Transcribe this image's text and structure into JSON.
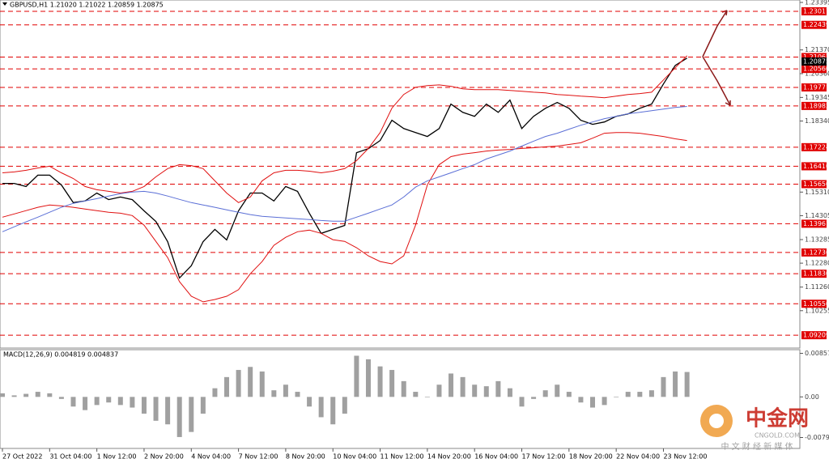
{
  "chart_data": [
    {
      "type": "line",
      "title": "GBPUSD,H1  1.21020 1.21022 1.20859 1.20875",
      "categories": [
        "27 Oct 2022",
        null,
        null,
        null,
        "31 Oct 04:00",
        null,
        null,
        null,
        "1 Nov 12:00",
        null,
        null,
        null,
        "2 Nov 20:00",
        null,
        null,
        null,
        "4 Nov 04:00",
        null,
        null,
        null,
        "7 Nov 12:00",
        null,
        null,
        null,
        "8 Nov 20:00",
        null,
        null,
        null,
        "10 Nov 04:00",
        null,
        null,
        null,
        "11 Nov 12:00",
        null,
        null,
        null,
        "14 Nov 20:00",
        null,
        null,
        null,
        "16 Nov 04:00",
        null,
        null,
        null,
        "17 Nov 12:00",
        null,
        null,
        null,
        "18 Nov 20:00",
        null,
        null,
        null,
        "22 Nov 04:00",
        null,
        null,
        null,
        "23 Nov 12:00",
        null,
        null
      ],
      "series": [
        {
          "color": "#000000",
          "values": [
            1.1568,
            1.1568,
            1.1555,
            1.1603,
            1.1603,
            1.1561,
            1.1486,
            1.1493,
            1.1527,
            1.1499,
            1.151,
            1.1499,
            1.1451,
            1.1406,
            1.132,
            1.1165,
            1.1217,
            1.132,
            1.1372,
            1.1327,
            1.1451,
            1.1527,
            1.1527,
            1.1493,
            1.1555,
            1.1534,
            1.1441,
            1.1355,
            1.1372,
            1.1389,
            1.1699,
            1.1716,
            1.1751,
            1.1837,
            1.1802,
            1.1785,
            1.1768,
            1.1802,
            1.1906,
            1.1871,
            1.1854,
            1.1906,
            1.1871,
            1.1923,
            1.1802,
            1.1854,
            1.1888,
            1.1913,
            1.1888,
            1.1837,
            1.182,
            1.183,
            1.1854,
            1.1864,
            1.1888,
            1.1906,
            1.1992,
            1.2071,
            1.2102
          ]
        },
        {
          "color": "#e01010",
          "values": [
            1.1613,
            1.1617,
            1.1624,
            1.1634,
            1.1641,
            1.1613,
            1.1589,
            1.1555,
            1.1541,
            1.1534,
            1.1527,
            1.1534,
            1.1555,
            1.1596,
            1.1631,
            1.1648,
            1.1644,
            1.1631,
            1.1579,
            1.1527,
            1.1486,
            1.151,
            1.1579,
            1.1613,
            1.1624,
            1.1624,
            1.162,
            1.1613,
            1.162,
            1.1631,
            1.1665,
            1.1717,
            1.1785,
            1.1889,
            1.1947,
            1.1978,
            1.1985,
            1.1988,
            1.1982,
            1.1971,
            1.1968,
            1.1968,
            1.1968,
            1.1964,
            1.1961,
            1.1957,
            1.1954,
            1.1947,
            1.1944,
            1.194,
            1.1937,
            1.1933,
            1.194,
            1.1947,
            1.1951,
            1.1957,
            1.2009,
            1.2061,
            1.2112
          ]
        },
        {
          "color": "#e01010",
          "values": [
            1.1424,
            1.1438,
            1.1452,
            1.1466,
            1.1476,
            1.1472,
            1.1466,
            1.1459,
            1.1452,
            1.1445,
            1.1441,
            1.1431,
            1.139,
            1.1321,
            1.1252,
            1.1149,
            1.1087,
            1.1063,
            1.1073,
            1.1087,
            1.1115,
            1.1183,
            1.1235,
            1.1304,
            1.1338,
            1.1362,
            1.1369,
            1.1355,
            1.1328,
            1.1321,
            1.1294,
            1.1259,
            1.1235,
            1.1225,
            1.1259,
            1.139,
            1.1562,
            1.1648,
            1.1682,
            1.1693,
            1.1699,
            1.1706,
            1.171,
            1.1713,
            1.1717,
            1.172,
            1.1724,
            1.1727,
            1.1734,
            1.1741,
            1.1761,
            1.1782,
            1.1785,
            1.1785,
            1.1782,
            1.1775,
            1.1768,
            1.1758,
            1.1751
          ]
        },
        {
          "color": "#5b6fd6",
          "values": [
            1.1362,
            1.1383,
            1.1404,
            1.1424,
            1.1445,
            1.1466,
            1.1483,
            1.1493,
            1.1503,
            1.1514,
            1.1524,
            1.1531,
            1.1534,
            1.1527,
            1.1514,
            1.15,
            1.1486,
            1.1476,
            1.1466,
            1.1455,
            1.1445,
            1.1435,
            1.1428,
            1.1424,
            1.1421,
            1.1417,
            1.1414,
            1.141,
            1.1407,
            1.1407,
            1.1424,
            1.1441,
            1.1459,
            1.1476,
            1.151,
            1.1552,
            1.1579,
            1.1596,
            1.1613,
            1.1631,
            1.1648,
            1.1672,
            1.1689,
            1.1706,
            1.1727,
            1.1748,
            1.1768,
            1.1782,
            1.1799,
            1.1816,
            1.183,
            1.1844,
            1.1854,
            1.1865,
            1.1871,
            1.1878,
            1.1885,
            1.1892,
            1.1896
          ]
        }
      ],
      "ylim": [
        1.0873,
        1.23395
      ],
      "yticks": [
        1.23395,
        {
          "value": 1.2137,
          "label": "1.21370"
        },
        {
          "value": 1.2036,
          "label": "1.20360"
        },
        1.19345,
        {
          "value": 1.1834,
          "label": "1.18340"
        },
        {
          "value": 1.1531,
          "label": "1.15310"
        },
        1.14305,
        1.13285,
        {
          "value": 1.1228,
          "label": "1.12280"
        },
        {
          "value": 1.1126,
          "label": "1.11260"
        },
        1.10255
      ],
      "levels": [
        1.23017,
        1.22439,
        1.21067,
        {
          "value": 1.2056,
          "label": "1.20560"
        },
        1.19771,
        1.18982,
        1.17224,
        {
          "value": 1.1641,
          "label": "1.16410"
        },
        {
          "value": 1.1565,
          "label": "1.15650"
        },
        1.13961,
        1.12736,
        {
          "value": 1.1183,
          "label": "1.11830"
        },
        {
          "value": 1.1055,
          "label": "1.10550"
        },
        1.09209
      ],
      "level_color": "#e00000",
      "current_price": 1.20875
    },
    {
      "type": "bar",
      "title": "MACD(12,26,9) 0.004819 0.004837",
      "color": "#a0a0a0",
      "values": [
        0.0007,
        0.0003,
        0.0006,
        0.001,
        0.0007,
        -0.0004,
        -0.0019,
        -0.0026,
        -0.0016,
        -0.0011,
        -0.0016,
        -0.0021,
        -0.0033,
        -0.0047,
        -0.0054,
        -0.0079,
        -0.0069,
        -0.0033,
        0.0017,
        0.0039,
        0.0053,
        0.0059,
        0.005,
        0.0013,
        0.0024,
        0.001,
        -0.0019,
        -0.004,
        -0.0054,
        -0.0033,
        0.0081,
        0.0074,
        0.006,
        0.0053,
        0.0031,
        0.001,
        -0.0001,
        0.0024,
        0.0046,
        0.0039,
        0.0024,
        0.0021,
        0.0031,
        0.0017,
        -0.0019,
        -0.0004,
        0.0013,
        0.0024,
        0.001,
        -0.0011,
        -0.0021,
        -0.0016,
        -0.0001,
        0.001,
        0.001,
        0.0013,
        0.0039,
        0.005,
        0.0049
      ],
      "ylim": [
        -0.01014,
        0.00929
      ],
      "yticks": [
        0.008572,
        {
          "value": 0,
          "label": "0.00"
        },
        -0.007991
      ]
    }
  ],
  "watermark": {
    "logo": "中金网",
    "site": "CNGOLD.COM",
    "tagline": "中 文 财 经 新 媒 体"
  }
}
